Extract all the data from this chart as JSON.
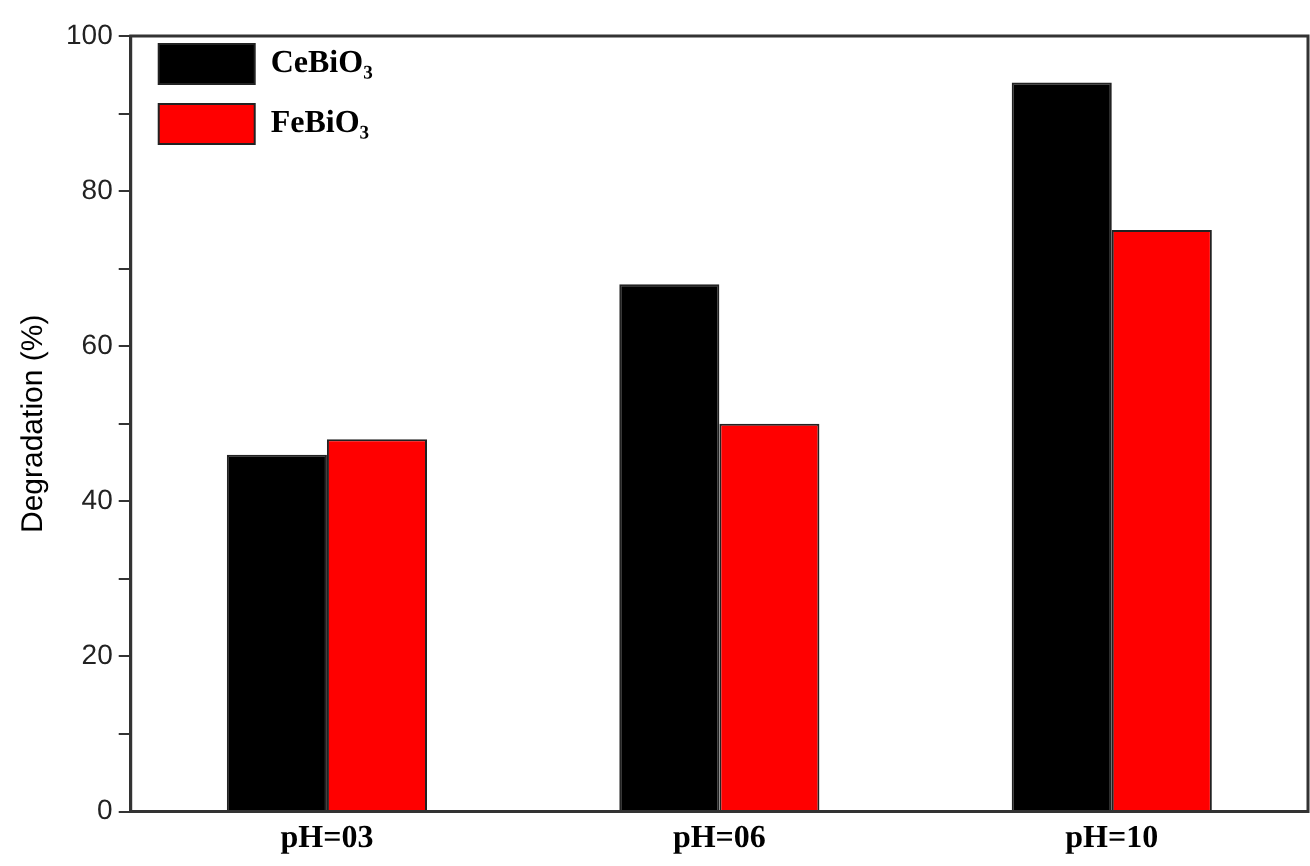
{
  "chart_data": {
    "type": "bar",
    "ylabel": "Degradation (%)",
    "categories": [
      "pH=03",
      "pH=06",
      "pH=10"
    ],
    "series": [
      {
        "name": "CeBiO₃",
        "color": "#000000",
        "values": [
          46,
          68,
          94
        ]
      },
      {
        "name": "FeBiO₃",
        "color": "#ff0000",
        "values": [
          48,
          50,
          75
        ]
      }
    ],
    "ylim": [
      0,
      100
    ],
    "yticks": [
      0,
      {
        "value": 10,
        "label": null
      },
      20,
      {
        "value": 30,
        "label": null
      },
      40,
      {
        "value": 50,
        "label": null
      },
      60,
      {
        "value": 70,
        "label": null
      },
      80,
      {
        "value": 90,
        "label": null
      },
      100
    ],
    "grid": false,
    "legend": "top left"
  }
}
